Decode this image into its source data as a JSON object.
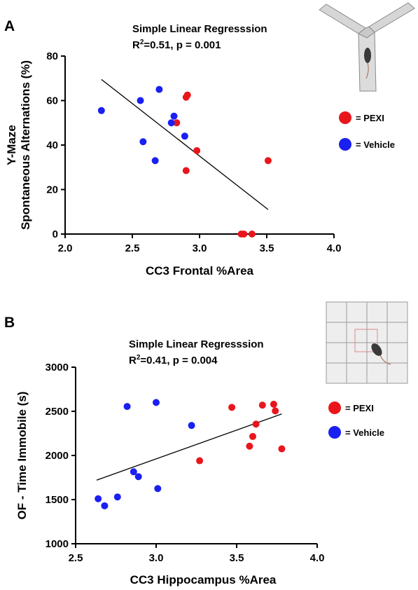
{
  "colors": {
    "pexi": "#e8161c",
    "vehicle": "#1a1ff2",
    "axis": "#000000"
  },
  "chart_data": [
    {
      "panel": "A",
      "type": "scatter",
      "title": "Simple Linear Regresssion",
      "stat_prefix": "R",
      "stat_sup": "2",
      "stat_rest": "=0.51, p = 0.001",
      "xlabel": "CC3 Frontal %Area",
      "ylabel_line1": "Y-Maze",
      "ylabel_line2": "Spontaneous Alternations (%)",
      "xlim": [
        2.0,
        4.0
      ],
      "ylim": [
        0,
        80
      ],
      "xticks": [
        "2.0",
        "2.5",
        "3.0",
        "3.5",
        "4.0"
      ],
      "yticks": [
        "0",
        "20",
        "40",
        "60",
        "80"
      ],
      "legend_position": "right",
      "regression": {
        "x": [
          2.27,
          3.51
        ],
        "y": [
          69.5,
          11.0
        ]
      },
      "series": [
        {
          "name": "= PEXI",
          "color": "#e8161c",
          "x": [
            2.83,
            2.9,
            2.91,
            2.9,
            2.98,
            3.31,
            3.33,
            3.39,
            3.51
          ],
          "y": [
            50,
            61.5,
            62.5,
            28.5,
            37.5,
            0,
            0,
            0,
            33
          ]
        },
        {
          "name": "= Vehicle",
          "color": "#1a1ff2",
          "x": [
            2.27,
            2.56,
            2.58,
            2.67,
            2.7,
            2.79,
            2.81,
            2.89
          ],
          "y": [
            55.5,
            60,
            41.5,
            33,
            65,
            50,
            53,
            44
          ]
        }
      ]
    },
    {
      "panel": "B",
      "type": "scatter",
      "title": "Simple Linear Regresssion",
      "stat_prefix": "R",
      "stat_sup": "2",
      "stat_rest": "=0.41, p = 0.004",
      "xlabel": "CC3 Hippocampus %Area",
      "ylabel_line1": "OF - Time Immobile (s)",
      "ylabel_line2": "",
      "xlim": [
        2.5,
        4.0
      ],
      "ylim": [
        1000,
        3000
      ],
      "xticks": [
        "2.5",
        "3.0",
        "3.5",
        "4.0"
      ],
      "yticks": [
        "1000",
        "1500",
        "2000",
        "2500",
        "3000"
      ],
      "legend_position": "right",
      "regression": {
        "x": [
          2.63,
          3.78
        ],
        "y": [
          1720,
          2470
        ]
      },
      "series": [
        {
          "name": "= PEXI",
          "color": "#e8161c",
          "x": [
            3.27,
            3.47,
            3.58,
            3.6,
            3.62,
            3.66,
            3.73,
            3.74,
            3.78
          ],
          "y": [
            1940,
            2545,
            2105,
            2215,
            2355,
            2570,
            2580,
            2505,
            2075
          ]
        },
        {
          "name": "= Vehicle",
          "color": "#1a1ff2",
          "x": [
            2.64,
            2.68,
            2.76,
            2.82,
            2.86,
            2.89,
            3.0,
            3.01,
            3.22
          ],
          "y": [
            1510,
            1430,
            1530,
            2555,
            1815,
            1760,
            2600,
            1625,
            2340
          ]
        }
      ]
    }
  ]
}
